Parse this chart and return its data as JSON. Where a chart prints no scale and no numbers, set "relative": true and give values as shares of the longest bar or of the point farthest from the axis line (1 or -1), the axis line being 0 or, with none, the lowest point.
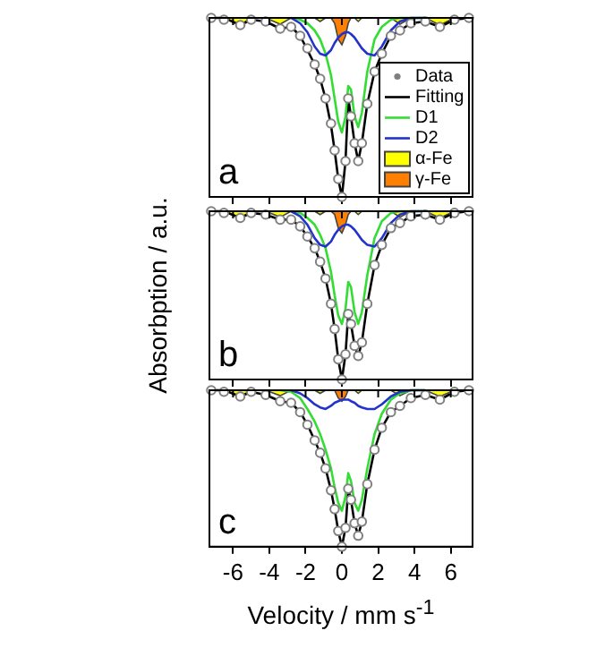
{
  "chart_data": [
    {
      "type": "line",
      "relative": true,
      "xlim": [
        -7.3,
        7.2
      ],
      "xticks": [
        -6,
        -4,
        -2,
        0,
        2,
        4,
        6
      ],
      "tick_labels": false,
      "grid": false,
      "legend": "right",
      "annotations": [
        "a"
      ],
      "x": [
        -7.2,
        -6.5,
        -5.6,
        -5.0,
        -4.2,
        -3.4,
        -2.8,
        -2.3,
        -1.9,
        -1.5,
        -1.2,
        -0.9,
        -0.6,
        -0.4,
        -0.2,
        0,
        0.2,
        0.35,
        0.5,
        0.7,
        0.9,
        1.1,
        1.4,
        1.8,
        2.2,
        2.7,
        3.2,
        3.8,
        4.6,
        5.4,
        6.2,
        7.0
      ],
      "series": [
        {
          "name": "Data",
          "type": "scatter",
          "marker": "circle",
          "color": "#808080",
          "values": [
            1,
            0.99,
            0.96,
            0.99,
            0.98,
            0.94,
            0.95,
            0.9,
            0.83,
            0.74,
            0.66,
            0.55,
            0.41,
            0.26,
            0.1,
            0,
            0.2,
            0.55,
            0.45,
            0.3,
            0.2,
            0.3,
            0.52,
            0.7,
            0.8,
            0.9,
            0.93,
            0.97,
            0.98,
            0.95,
            0.99,
            1
          ]
        },
        {
          "name": "Fitting",
          "type": "line",
          "color": "#000000",
          "values": [
            1,
            1,
            0.96,
            0.99,
            0.98,
            0.94,
            0.95,
            0.9,
            0.82,
            0.74,
            0.66,
            0.55,
            0.4,
            0.26,
            0.1,
            0,
            0.2,
            0.55,
            0.45,
            0.3,
            0.2,
            0.3,
            0.52,
            0.7,
            0.8,
            0.9,
            0.93,
            0.97,
            0.98,
            0.95,
            0.99,
            1
          ]
        },
        {
          "name": "D1",
          "type": "line",
          "color": "#33dd33",
          "values": [
            null,
            null,
            null,
            null,
            null,
            null,
            1,
            0.99,
            0.97,
            0.93,
            0.88,
            0.8,
            0.68,
            0.55,
            0.42,
            0.36,
            0.45,
            0.62,
            0.6,
            0.45,
            0.39,
            0.47,
            0.7,
            0.88,
            0.95,
            0.99,
            1,
            1,
            1,
            null,
            null,
            null
          ]
        },
        {
          "name": "D2",
          "type": "line",
          "color": "#2233cc",
          "values": [
            null,
            null,
            null,
            null,
            null,
            null,
            1,
            0.97,
            0.92,
            0.84,
            0.8,
            0.79,
            0.82,
            0.86,
            0.89,
            0.91,
            0.92,
            0.92,
            0.91,
            0.89,
            0.86,
            0.83,
            0.8,
            0.79,
            0.84,
            0.93,
            0.98,
            1,
            1,
            null,
            null,
            null
          ]
        },
        {
          "name": "α-Fe",
          "type": "area",
          "color": "#ffff00",
          "values": [
            1,
            1,
            0.96,
            1,
            1,
            0.965,
            1,
            1,
            1,
            1,
            0.98,
            1,
            1,
            1,
            1,
            1,
            1,
            1,
            1,
            1,
            0.98,
            1,
            1,
            1,
            1,
            1,
            0.965,
            1,
            1,
            0.96,
            1,
            1
          ]
        },
        {
          "name": "γ-Fe",
          "type": "area",
          "color": "#ff7f00",
          "values": [
            1,
            1,
            1,
            1,
            1,
            1,
            1,
            1,
            1,
            1,
            1,
            1,
            1,
            0.97,
            0.88,
            0.85,
            0.9,
            0.97,
            1,
            1,
            1,
            1,
            1,
            1,
            1,
            1,
            1,
            1,
            1,
            1,
            1,
            1
          ]
        }
      ]
    },
    {
      "type": "line",
      "relative": true,
      "xlim": [
        -7.3,
        7.2
      ],
      "xticks": [
        -6,
        -4,
        -2,
        0,
        2,
        4,
        6
      ],
      "tick_labels": false,
      "grid": false,
      "ylabel": "Absorbption / a.u.",
      "annotations": [
        "b"
      ],
      "x": [
        -7.2,
        -6.5,
        -5.6,
        -5.0,
        -4.2,
        -3.4,
        -2.8,
        -2.3,
        -1.9,
        -1.5,
        -1.2,
        -0.9,
        -0.6,
        -0.4,
        -0.2,
        0,
        0.2,
        0.35,
        0.5,
        0.7,
        0.9,
        1.1,
        1.4,
        1.8,
        2.2,
        2.7,
        3.2,
        3.8,
        4.6,
        5.4,
        6.2,
        7.0
      ],
      "series": [
        {
          "type": "scatter",
          "marker": "circle",
          "color": "#808080",
          "values": [
            1,
            0.99,
            0.96,
            0.99,
            0.98,
            0.95,
            0.95,
            0.91,
            0.85,
            0.78,
            0.7,
            0.6,
            0.45,
            0.3,
            0.12,
            0,
            0.15,
            0.39,
            0.33,
            0.2,
            0.14,
            0.22,
            0.45,
            0.68,
            0.8,
            0.9,
            0.93,
            0.97,
            0.98,
            0.95,
            0.99,
            1
          ]
        },
        {
          "type": "line",
          "color": "#000000",
          "values": [
            1,
            1,
            0.96,
            0.99,
            0.98,
            0.95,
            0.95,
            0.91,
            0.85,
            0.78,
            0.7,
            0.6,
            0.45,
            0.3,
            0.12,
            0,
            0.15,
            0.39,
            0.33,
            0.2,
            0.14,
            0.22,
            0.45,
            0.68,
            0.8,
            0.9,
            0.93,
            0.97,
            0.98,
            0.95,
            0.99,
            1
          ]
        },
        {
          "type": "line",
          "color": "#33dd33",
          "values": [
            null,
            null,
            null,
            null,
            null,
            null,
            1,
            0.99,
            0.96,
            0.92,
            0.86,
            0.78,
            0.64,
            0.5,
            0.38,
            0.33,
            0.42,
            0.58,
            0.55,
            0.4,
            0.33,
            0.4,
            0.62,
            0.84,
            0.94,
            0.99,
            1,
            1,
            1,
            null,
            null,
            null
          ]
        },
        {
          "type": "line",
          "color": "#2233cc",
          "values": [
            null,
            null,
            null,
            null,
            null,
            null,
            1,
            0.97,
            0.92,
            0.84,
            0.8,
            0.79,
            0.82,
            0.86,
            0.89,
            0.91,
            0.92,
            0.92,
            0.91,
            0.89,
            0.86,
            0.83,
            0.8,
            0.79,
            0.84,
            0.93,
            0.98,
            1,
            1,
            null,
            null,
            null
          ]
        },
        {
          "type": "area",
          "color": "#ffff00",
          "values": [
            1,
            1,
            0.96,
            1,
            1,
            0.965,
            1,
            1,
            1,
            1,
            0.98,
            1,
            1,
            1,
            1,
            1,
            1,
            1,
            1,
            1,
            0.98,
            1,
            1,
            1,
            1,
            1,
            0.965,
            1,
            1,
            0.96,
            1,
            1
          ]
        },
        {
          "type": "area",
          "color": "#ff7f00",
          "values": [
            1,
            1,
            1,
            1,
            1,
            1,
            1,
            1,
            1,
            1,
            1,
            1,
            1,
            0.98,
            0.9,
            0.87,
            0.92,
            0.98,
            1,
            1,
            1,
            1,
            1,
            1,
            1,
            1,
            1,
            1,
            1,
            1,
            1,
            1
          ]
        }
      ]
    },
    {
      "type": "line",
      "relative": true,
      "xlim": [
        -7.3,
        7.2
      ],
      "xticks": [
        -6,
        -4,
        -2,
        0,
        2,
        4,
        6
      ],
      "tick_labels": "x",
      "grid": false,
      "xlabel": "Velocity / mm s$^{-1}$",
      "annotations": [
        "c"
      ],
      "x": [
        -7.2,
        -6.5,
        -5.6,
        -5.0,
        -4.2,
        -3.4,
        -2.8,
        -2.3,
        -1.9,
        -1.5,
        -1.2,
        -0.9,
        -0.6,
        -0.4,
        -0.2,
        0,
        0.2,
        0.35,
        0.5,
        0.7,
        0.9,
        1.1,
        1.4,
        1.8,
        2.2,
        2.7,
        3.2,
        3.8,
        4.6,
        5.4,
        6.2,
        7.0
      ],
      "series": [
        {
          "type": "scatter",
          "marker": "circle",
          "color": "#808080",
          "values": [
            1,
            0.99,
            0.96,
            0.99,
            0.97,
            0.93,
            0.92,
            0.86,
            0.78,
            0.68,
            0.6,
            0.5,
            0.36,
            0.24,
            0.1,
            0,
            0.12,
            0.37,
            0.3,
            0.15,
            0.07,
            0.16,
            0.4,
            0.62,
            0.76,
            0.86,
            0.9,
            0.95,
            0.97,
            0.94,
            0.99,
            1
          ]
        },
        {
          "type": "line",
          "color": "#000000",
          "values": [
            1,
            1,
            0.96,
            0.99,
            0.97,
            0.93,
            0.92,
            0.86,
            0.78,
            0.68,
            0.6,
            0.5,
            0.36,
            0.24,
            0.1,
            0,
            0.12,
            0.37,
            0.3,
            0.15,
            0.07,
            0.16,
            0.4,
            0.62,
            0.76,
            0.86,
            0.9,
            0.95,
            0.97,
            0.94,
            0.99,
            1
          ]
        },
        {
          "type": "line",
          "color": "#33dd33",
          "values": [
            null,
            null,
            null,
            null,
            null,
            1,
            0.99,
            0.95,
            0.88,
            0.8,
            0.72,
            0.62,
            0.5,
            0.38,
            0.28,
            0.23,
            0.32,
            0.47,
            0.42,
            0.28,
            0.23,
            0.3,
            0.5,
            0.72,
            0.85,
            0.94,
            0.98,
            1,
            1,
            null,
            null,
            null
          ]
        },
        {
          "type": "line",
          "color": "#2233cc",
          "values": [
            null,
            null,
            null,
            null,
            null,
            null,
            1,
            0.98,
            0.95,
            0.91,
            0.89,
            0.88,
            0.9,
            0.92,
            0.93,
            0.94,
            0.94,
            0.94,
            0.93,
            0.92,
            0.9,
            0.89,
            0.88,
            0.88,
            0.91,
            0.96,
            0.99,
            1,
            1,
            null,
            null,
            null
          ]
        },
        {
          "type": "area",
          "color": "#ffff00",
          "values": [
            1,
            1,
            0.96,
            1,
            1,
            0.965,
            1,
            1,
            1,
            1,
            0.98,
            1,
            1,
            1,
            1,
            1,
            1,
            1,
            1,
            1,
            0.98,
            1,
            1,
            1,
            1,
            1,
            0.965,
            1,
            1,
            0.96,
            1,
            1
          ]
        },
        {
          "type": "area",
          "color": "#ff7f00",
          "values": [
            1,
            1,
            1,
            1,
            1,
            1,
            1,
            1,
            1,
            1,
            1,
            1,
            1,
            1,
            0.95,
            0.93,
            0.96,
            1,
            1,
            1,
            1,
            1,
            1,
            1,
            1,
            1,
            1,
            1,
            1,
            1,
            1,
            1
          ]
        }
      ]
    }
  ]
}
